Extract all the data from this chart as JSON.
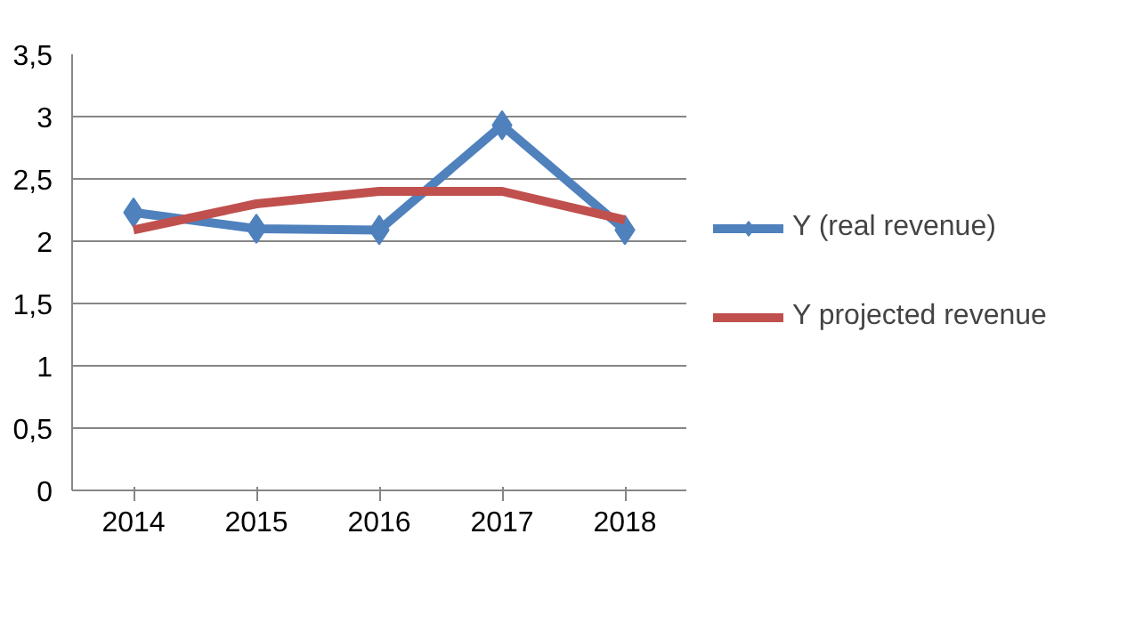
{
  "chart_data": {
    "type": "line",
    "categories": [
      "2014",
      "2015",
      "2016",
      "2017",
      "2018"
    ],
    "series": [
      {
        "name": "Y (real revenue)",
        "color": "#4f81bd",
        "marker": "diamond",
        "values": [
          2.23,
          2.1,
          2.09,
          2.93,
          2.09
        ]
      },
      {
        "name": "Y projected revenue",
        "color": "#c0504d",
        "marker": "none",
        "values": [
          2.09,
          2.3,
          2.4,
          2.4,
          2.17
        ]
      }
    ],
    "ylim": [
      0,
      3.5
    ],
    "yticks": [
      0,
      {
        "value": 0.5,
        "label": "0,5"
      },
      1,
      {
        "value": 1.5,
        "label": "1,5"
      },
      2,
      {
        "value": 2.5,
        "label": "2,5"
      },
      3,
      {
        "value": 3.5,
        "label": "3,5"
      }
    ],
    "grid": "y",
    "legend": "right",
    "line_style": "solid"
  }
}
